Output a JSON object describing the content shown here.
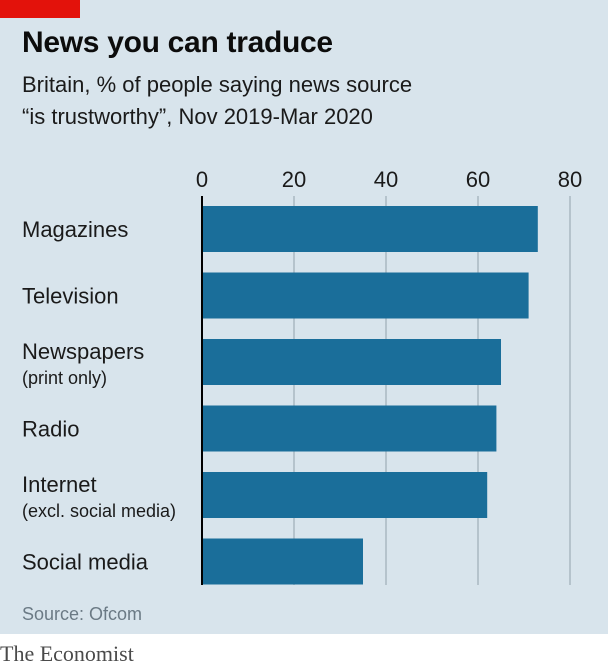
{
  "header": {
    "title": "News you can traduce",
    "subtitle_line1": "Britain, % of people saying news source",
    "subtitle_line2": "“is trustworthy”, Nov 2019-Mar 2020"
  },
  "footer": {
    "source": "Source: Ofcom",
    "brand": "The Economist"
  },
  "colors": {
    "bar": "#1a6e9a",
    "background": "#d8e4ec",
    "gridline": "#a9b8c2",
    "accent": "#e3120b"
  },
  "chart_data": {
    "type": "bar",
    "orientation": "horizontal",
    "xlim": [
      0,
      80
    ],
    "ticks": [
      0,
      20,
      40,
      60,
      80
    ],
    "grid": true,
    "categories": [
      {
        "label": "Magazines",
        "sublabel": ""
      },
      {
        "label": "Television",
        "sublabel": ""
      },
      {
        "label": "Newspapers",
        "sublabel": "(print only)"
      },
      {
        "label": "Radio",
        "sublabel": ""
      },
      {
        "label": "Internet",
        "sublabel": "(excl. social media)"
      },
      {
        "label": "Social media",
        "sublabel": ""
      }
    ],
    "values": [
      73,
      71,
      65,
      64,
      62,
      35
    ]
  }
}
